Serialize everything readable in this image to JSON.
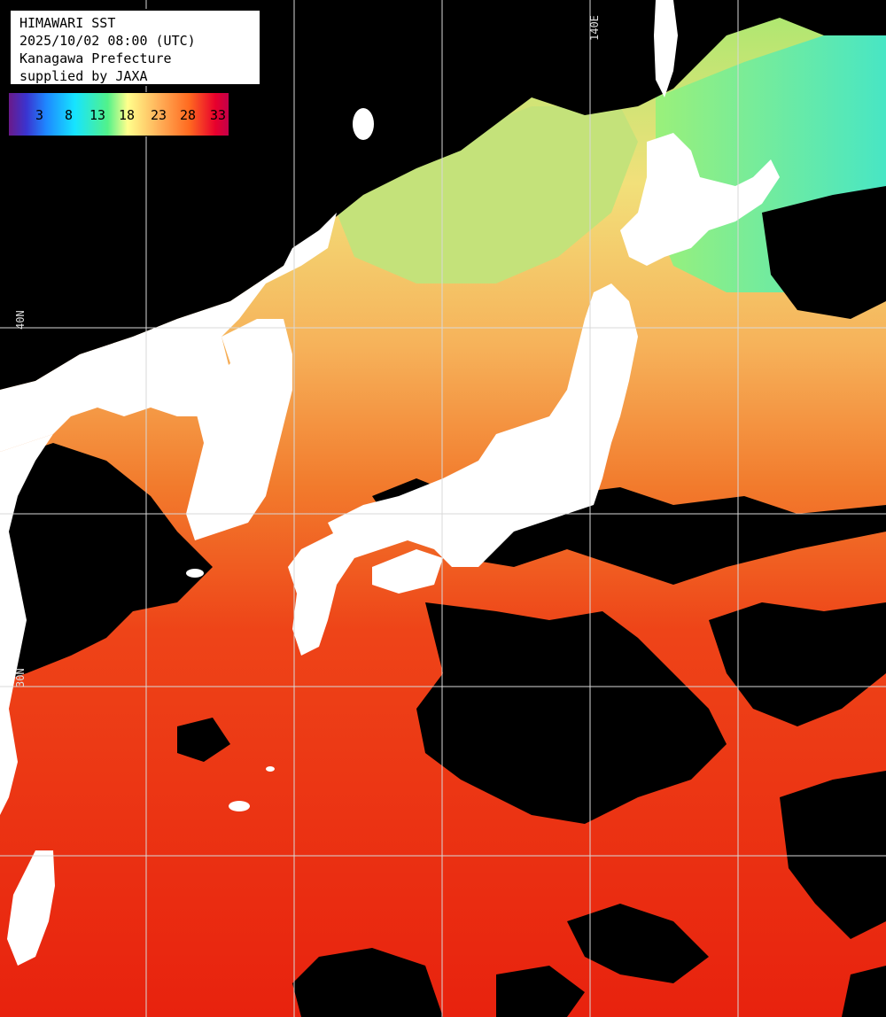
{
  "header": {
    "title": "HIMAWARI SST",
    "datetime": "2025/10/02 08:00 (UTC)",
    "region": "Kanagawa Prefecture",
    "credit": "supplied by JAXA"
  },
  "legend": {
    "ticks": [
      "3",
      "8",
      "13",
      "18",
      "23",
      "28",
      "33"
    ],
    "colors": [
      "#6a1a8a",
      "#3a34d0",
      "#1e88ff",
      "#16e4ff",
      "#52f28a",
      "#ffff8c",
      "#ffb25a",
      "#ff6a20",
      "#e8002c",
      "#c4004a"
    ]
  },
  "grid_labels": {
    "lon_140": "140E",
    "lat_40": "40N",
    "lat_30": "30N"
  },
  "colors": {
    "land": "#ffffff",
    "cloud": "#000000",
    "grid": "#d8d8d8"
  }
}
